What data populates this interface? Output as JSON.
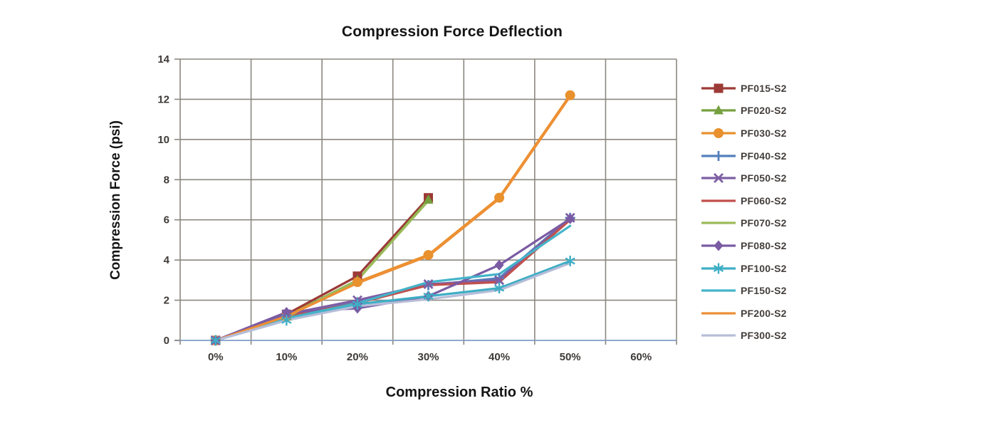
{
  "chart_data": {
    "type": "line",
    "title": "Compression Force Deflection",
    "xlabel": "Compression Ratio %",
    "ylabel": "Compression Force  (psi)",
    "categories": [
      "0%",
      "10%",
      "20%",
      "30%",
      "40%",
      "50%",
      "60%"
    ],
    "ylim": [
      0,
      14
    ],
    "yticks": [
      0,
      2,
      4,
      6,
      8,
      10,
      12,
      14
    ],
    "grid": true,
    "legend_position": "right",
    "series": [
      {
        "name": "PF015-S2",
        "color": "#9C3A36",
        "marker": "square",
        "values": [
          0,
          1.3,
          3.2,
          7.1
        ]
      },
      {
        "name": "PF020-S2",
        "color": "#76A03F",
        "marker": "triangle",
        "values": [
          0,
          1.2,
          3.0,
          7.0
        ]
      },
      {
        "name": "PF030-S2",
        "color": "#E8912D",
        "marker": "circle",
        "values": [
          0,
          1.2,
          2.9,
          4.25,
          7.1,
          12.2
        ]
      },
      {
        "name": "PF040-S2",
        "color": "#5580BC",
        "marker": "plus",
        "values": [
          0,
          1.25,
          1.9,
          2.75,
          3.1,
          6.1
        ]
      },
      {
        "name": "PF050-S2",
        "color": "#7D5FA5",
        "marker": "x",
        "values": [
          0,
          1.3,
          2.0,
          2.8,
          3.0,
          6.1
        ]
      },
      {
        "name": "PF060-S2",
        "color": "#C0504D",
        "marker": "none",
        "values": [
          0,
          1.2,
          1.85,
          2.75,
          2.9,
          6.0
        ]
      },
      {
        "name": "PF070-S2",
        "color": "#9BBB59",
        "marker": "none",
        "values": [
          0,
          1.15,
          3.0,
          6.95
        ]
      },
      {
        "name": "PF080-S2",
        "color": "#7A5BA3",
        "marker": "diamond",
        "values": [
          0,
          1.4,
          1.6,
          2.2,
          3.75,
          6.05
        ]
      },
      {
        "name": "PF100-S2",
        "color": "#3EAEC5",
        "marker": "asterisk",
        "values": [
          0,
          1.0,
          1.8,
          2.2,
          2.6,
          3.95
        ]
      },
      {
        "name": "PF150-S2",
        "color": "#44B4C9",
        "marker": "none",
        "values": [
          0,
          1.1,
          1.85,
          2.9,
          3.3,
          5.7
        ]
      },
      {
        "name": "PF200-S2",
        "color": "#EE8F35",
        "marker": "none",
        "values": [
          0,
          1.2,
          2.85,
          4.2,
          7.05,
          12.15
        ]
      },
      {
        "name": "PF300-S2",
        "color": "#B7BDD8",
        "marker": "none",
        "values": [
          0,
          1.0,
          1.7,
          2.05,
          2.5,
          3.85
        ]
      }
    ],
    "colors": {
      "grid": "#8C8880",
      "axis_line": "#90A8D0",
      "tick_label": "#3E3A38",
      "title_text": "#141414"
    }
  }
}
